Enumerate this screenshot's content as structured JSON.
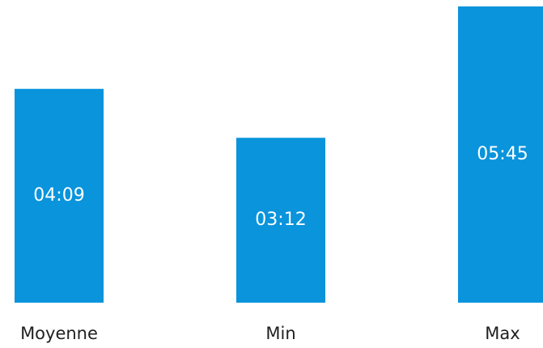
{
  "colors": {
    "bar": "#0994dc",
    "label": "#1f1f1f",
    "value_text": "#ffffff",
    "background": "#ffffff"
  },
  "chart_data": {
    "type": "bar",
    "title": "",
    "xlabel": "",
    "ylabel": "",
    "unit": "minutes",
    "categories": [
      "Moyenne",
      "Min",
      "Max"
    ],
    "values": [
      4.15,
      3.2,
      5.75
    ],
    "data_labels": [
      "04:09",
      "03:12",
      "05:45"
    ],
    "ylim": [
      0,
      5.78
    ],
    "grid": false,
    "legend": "none"
  }
}
